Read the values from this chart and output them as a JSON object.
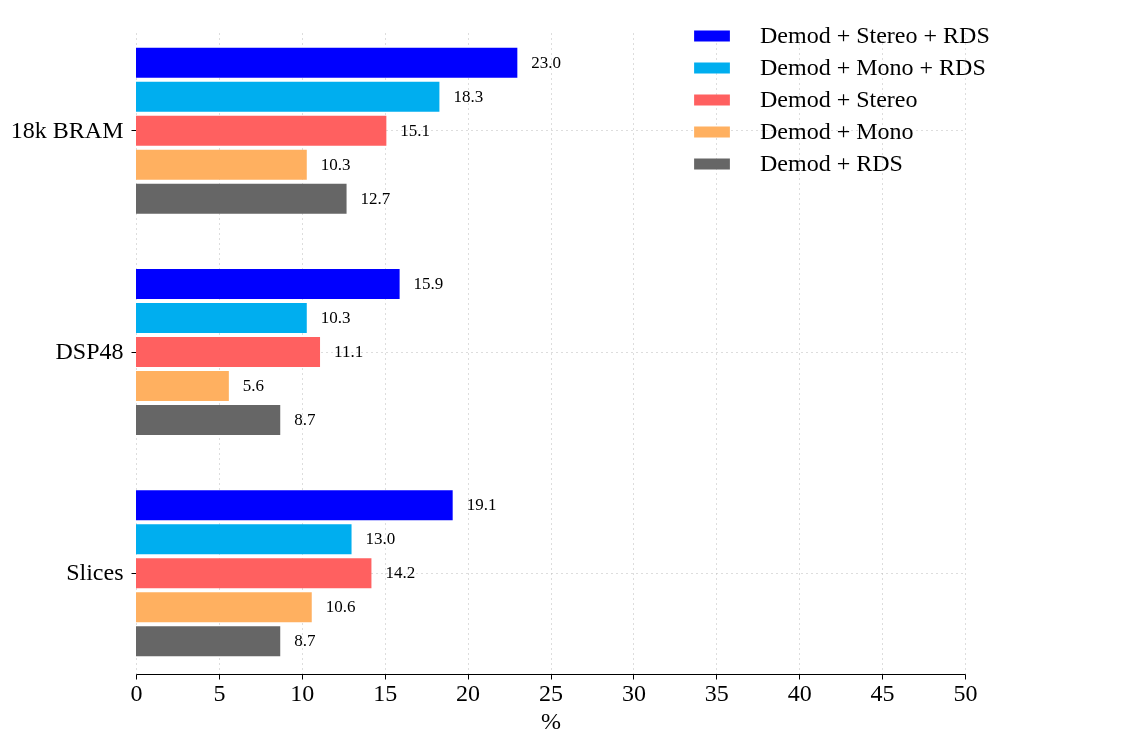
{
  "chart_data": {
    "type": "bar",
    "orientation": "horizontal",
    "xlabel": "%",
    "categories": [
      "18k BRAM",
      "DSP48",
      "Slices"
    ],
    "series": [
      {
        "name": "Demod + Stereo + RDS",
        "color": "#0000ff",
        "values": [
          23.0,
          15.9,
          19.1
        ],
        "value_labels": [
          "23.0",
          "15.9",
          "19.1"
        ]
      },
      {
        "name": "Demod + Mono + RDS",
        "color": "#00aeef",
        "values": [
          18.3,
          10.3,
          13.0
        ],
        "value_labels": [
          "18.3",
          "10.3",
          "13.0"
        ]
      },
      {
        "name": "Demod + Stereo",
        "color": "#ff6060",
        "values": [
          15.1,
          11.1,
          14.2
        ],
        "value_labels": [
          "15.1",
          "11.1",
          "14.2"
        ]
      },
      {
        "name": "Demod + Mono",
        "color": "#ffb060",
        "values": [
          10.3,
          5.6,
          10.6
        ],
        "value_labels": [
          "10.3",
          "5.6",
          "10.6"
        ]
      },
      {
        "name": "Demod + RDS",
        "color": "#666666",
        "values": [
          12.7,
          8.7,
          8.7
        ],
        "value_labels": [
          "12.7",
          "8.7",
          "8.7"
        ]
      }
    ],
    "xlim": [
      0,
      50
    ],
    "xticks": [
      0,
      5,
      10,
      15,
      20,
      25,
      30,
      35,
      40,
      45,
      50
    ],
    "grid": true,
    "legend": "top right"
  }
}
